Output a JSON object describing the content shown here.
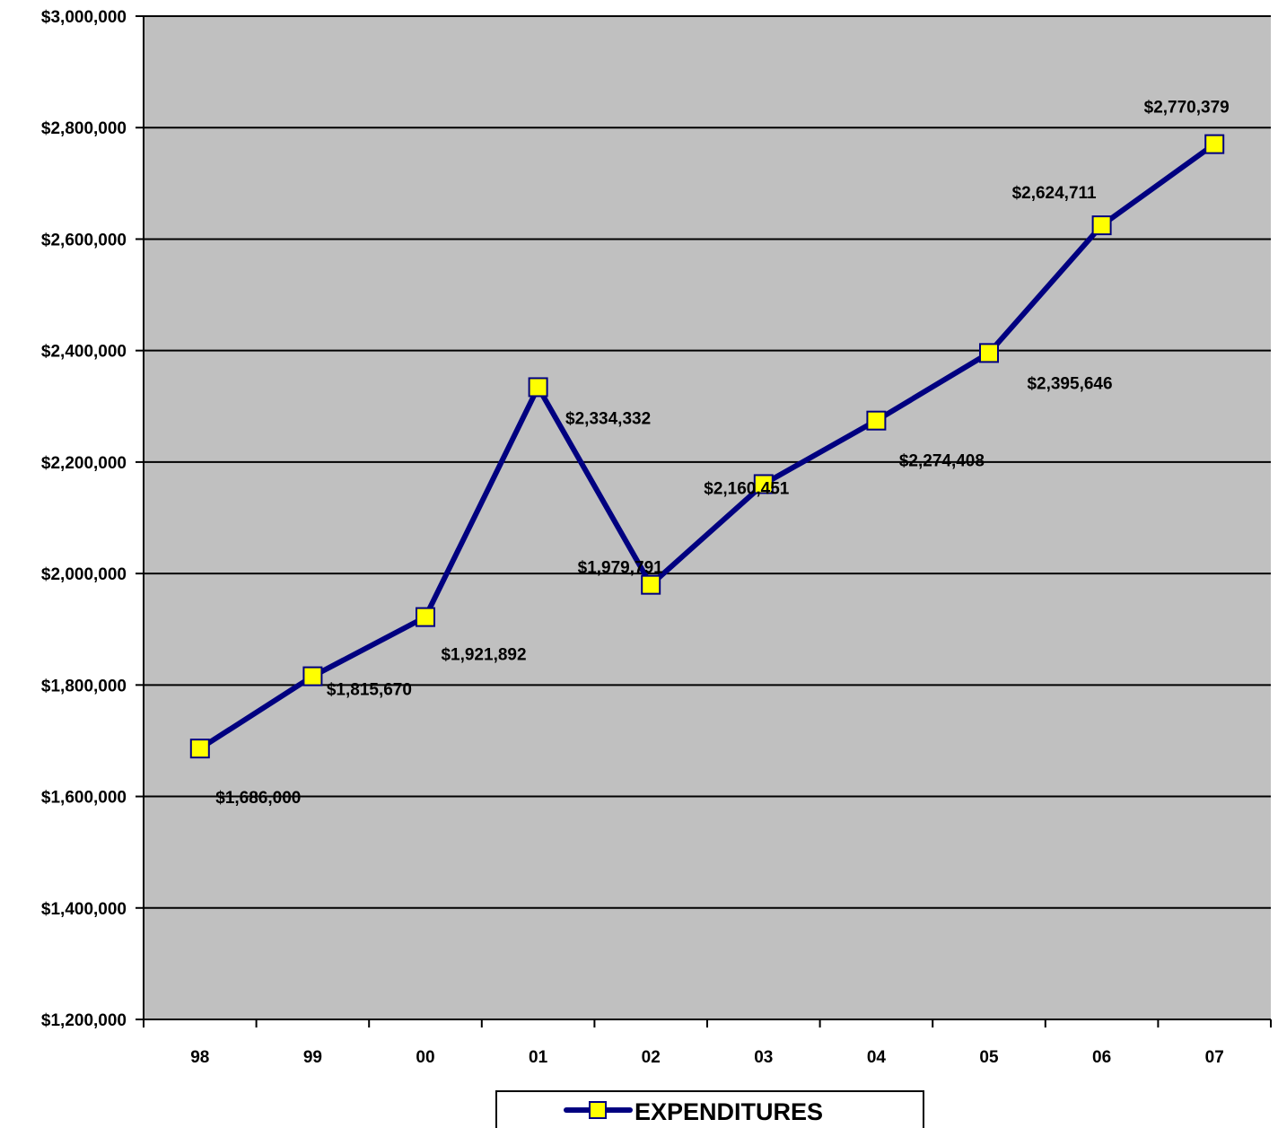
{
  "chart_data": {
    "type": "line",
    "categories": [
      "98",
      "99",
      "00",
      "01",
      "02",
      "03",
      "04",
      "05",
      "06",
      "07"
    ],
    "series": [
      {
        "name": "EXPENDITURES",
        "values": [
          1686000,
          1815670,
          1921892,
          2334332,
          1979791,
          2160451,
          2274408,
          2395646,
          2624711,
          2770379
        ]
      }
    ],
    "data_labels": [
      "$1,686,000",
      "$1,815,670",
      "$1,921,892",
      "$2,334,332",
      "$1,979,791",
      "$2,160,451",
      "$2,274,408",
      "$2,395,646",
      "$2,624,711",
      "$2,770,379"
    ],
    "ylim": [
      1200000,
      3000000
    ],
    "y_ticks": [
      1200000,
      1400000,
      1600000,
      1800000,
      2000000,
      2200000,
      2400000,
      2600000,
      2800000,
      3000000
    ],
    "y_tick_labels": [
      "$1,200,000",
      "$1,400,000",
      "$1,600,000",
      "$1,800,000",
      "$2,000,000",
      "$2,200,000",
      "$2,400,000",
      "$2,600,000",
      "$2,800,000",
      "$3,000,000"
    ],
    "grid": true,
    "legend_position": "bottom",
    "colors": {
      "plot_background": "#c0c0c0",
      "line": "#000080",
      "marker_fill": "#ffff00",
      "marker_stroke": "#000080",
      "gridline": "#000000"
    }
  }
}
